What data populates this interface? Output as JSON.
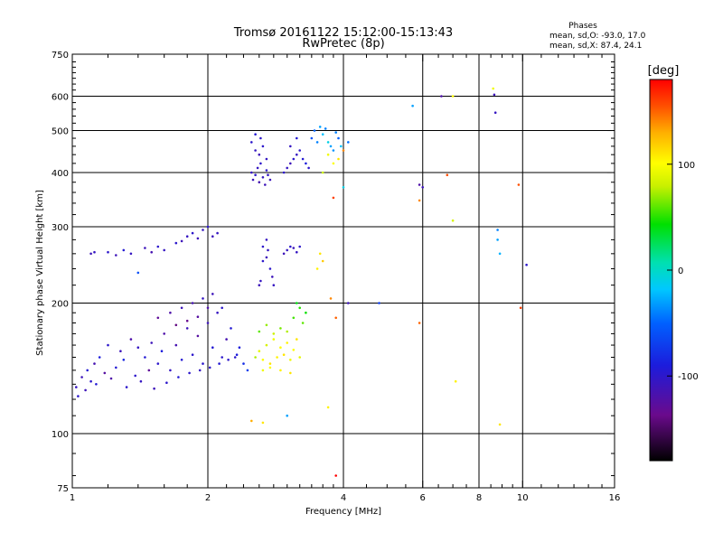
{
  "chart_data": {
    "type": "scatter",
    "title": "Tromsø 20161122 15:12:00-15:13:43",
    "subtitle": "RwPretec (8p)",
    "stats": {
      "heading": "Phases",
      "line1": "mean, sd,O: -93.0, 17.0",
      "line2": "mean, sd,X:  87.4, 24.1"
    },
    "xlabel": "Frequency [MHz]",
    "ylabel": "Stationary phase Virtual Height [km]",
    "x_scale": "log",
    "y_scale": "log",
    "xlim": [
      1,
      16
    ],
    "ylim": [
      75,
      750
    ],
    "x_ticks": [
      1,
      2,
      4,
      6,
      8,
      10,
      16
    ],
    "x_tick_labels": [
      "1",
      "2",
      "4",
      "6",
      "8",
      "10",
      "16"
    ],
    "x_minor_ticks": [
      1.2,
      1.4,
      1.6,
      1.8,
      2.2,
      2.4,
      2.6,
      2.8,
      3,
      3.2,
      3.4,
      3.6,
      3.8,
      4.5,
      5,
      5.5,
      6.5,
      7,
      7.5,
      8.5,
      9,
      9.5,
      11,
      12,
      13,
      14,
      15
    ],
    "x_gridlines": [
      2,
      4,
      6,
      8,
      10
    ],
    "y_ticks": [
      75,
      100,
      200,
      300,
      400,
      500,
      600,
      750
    ],
    "y_tick_labels": [
      "75",
      "100",
      "200",
      "300",
      "400",
      "500",
      "600",
      "750"
    ],
    "y_minor_ticks": [
      80,
      90,
      110,
      120,
      130,
      140,
      150,
      160,
      170,
      180,
      190,
      220,
      240,
      260,
      280,
      320,
      340,
      360,
      380,
      420,
      440,
      460,
      480,
      520,
      540,
      560,
      580,
      620,
      640,
      660,
      680,
      700,
      720
    ],
    "y_gridlines": [
      100,
      200,
      300,
      400,
      500,
      600
    ],
    "grid": true,
    "colorbar": {
      "label": "[deg]",
      "min": -180,
      "max": 180,
      "ticks": [
        100,
        0,
        -100
      ],
      "tick_labels": [
        "100",
        "0",
        "-100"
      ]
    },
    "points": [
      [
        1.02,
        128,
        -105
      ],
      [
        1.05,
        135,
        -110
      ],
      [
        1.08,
        140,
        -95
      ],
      [
        1.1,
        132,
        -100
      ],
      [
        1.12,
        145,
        -115
      ],
      [
        1.15,
        150,
        -90
      ],
      [
        1.18,
        138,
        -125
      ],
      [
        1.2,
        160,
        -100
      ],
      [
        1.25,
        142,
        -95
      ],
      [
        1.28,
        155,
        -110
      ],
      [
        1.3,
        148,
        -85
      ],
      [
        1.35,
        165,
        -120
      ],
      [
        1.38,
        136,
        -100
      ],
      [
        1.4,
        158,
        -105
      ],
      [
        1.45,
        150,
        -95
      ],
      [
        1.48,
        140,
        -130
      ],
      [
        1.5,
        162,
        -110
      ],
      [
        1.55,
        145,
        -100
      ],
      [
        1.58,
        155,
        -90
      ],
      [
        1.6,
        170,
        -120
      ],
      [
        1.65,
        140,
        -105
      ],
      [
        1.7,
        160,
        -115
      ],
      [
        1.75,
        148,
        -95
      ],
      [
        1.8,
        175,
        -110
      ],
      [
        1.85,
        152,
        -100
      ],
      [
        1.9,
        168,
        -125
      ],
      [
        1.95,
        145,
        -100
      ],
      [
        2.0,
        180,
        -110
      ],
      [
        2.05,
        158,
        -95
      ],
      [
        2.1,
        190,
        -105
      ],
      [
        2.15,
        150,
        -100
      ],
      [
        2.2,
        165,
        -115
      ],
      [
        2.25,
        175,
        -95
      ],
      [
        2.3,
        150,
        -100
      ],
      [
        2.35,
        158,
        -90
      ],
      [
        2.4,
        145,
        -80
      ],
      [
        2.45,
        140,
        -70
      ],
      [
        1.03,
        122,
        -100
      ],
      [
        1.07,
        126,
        -110
      ],
      [
        1.13,
        130,
        -95
      ],
      [
        1.22,
        134,
        -120
      ],
      [
        1.32,
        128,
        -100
      ],
      [
        1.42,
        132,
        -105
      ],
      [
        1.52,
        127,
        -110
      ],
      [
        1.62,
        131,
        -100
      ],
      [
        1.72,
        135,
        -95
      ],
      [
        1.82,
        138,
        -100
      ],
      [
        1.92,
        140,
        -105
      ],
      [
        2.02,
        142,
        -100
      ],
      [
        2.12,
        145,
        -95
      ],
      [
        2.22,
        148,
        -100
      ],
      [
        2.32,
        152,
        -90
      ],
      [
        1.55,
        185,
        -130
      ],
      [
        1.65,
        190,
        -120
      ],
      [
        1.75,
        195,
        -110
      ],
      [
        1.85,
        200,
        -115
      ],
      [
        1.95,
        205,
        -105
      ],
      [
        2.05,
        210,
        -110
      ],
      [
        2.15,
        195,
        -100
      ],
      [
        1.7,
        178,
        -140
      ],
      [
        1.8,
        182,
        -135
      ],
      [
        1.9,
        186,
        -125
      ],
      [
        2.0,
        195,
        -120
      ],
      [
        2.55,
        150,
        75
      ],
      [
        2.6,
        155,
        90
      ],
      [
        2.65,
        148,
        100
      ],
      [
        2.7,
        160,
        85
      ],
      [
        2.75,
        145,
        110
      ],
      [
        2.8,
        165,
        95
      ],
      [
        2.85,
        150,
        105
      ],
      [
        2.9,
        158,
        100
      ],
      [
        2.95,
        152,
        110
      ],
      [
        3.0,
        162,
        105
      ],
      [
        3.05,
        148,
        95
      ],
      [
        3.1,
        156,
        100
      ],
      [
        3.15,
        165,
        110
      ],
      [
        3.2,
        150,
        90
      ],
      [
        2.6,
        172,
        60
      ],
      [
        2.7,
        178,
        70
      ],
      [
        2.8,
        170,
        80
      ],
      [
        2.9,
        175,
        65
      ],
      [
        3.0,
        172,
        75
      ],
      [
        3.1,
        185,
        55
      ],
      [
        3.2,
        195,
        50
      ],
      [
        3.25,
        180,
        60
      ],
      [
        3.3,
        190,
        45
      ],
      [
        3.15,
        200,
        40
      ],
      [
        2.65,
        140,
        95
      ],
      [
        2.75,
        142,
        100
      ],
      [
        2.9,
        140,
        105
      ],
      [
        3.05,
        138,
        110
      ],
      [
        1.1,
        260,
        -110
      ],
      [
        1.12,
        262,
        -105
      ],
      [
        1.2,
        262,
        -100
      ],
      [
        1.25,
        258,
        -110
      ],
      [
        1.3,
        265,
        -95
      ],
      [
        1.35,
        260,
        -105
      ],
      [
        1.45,
        268,
        -110
      ],
      [
        1.5,
        262,
        -115
      ],
      [
        1.55,
        270,
        -100
      ],
      [
        1.6,
        265,
        -105
      ],
      [
        1.7,
        275,
        -100
      ],
      [
        1.75,
        278,
        -110
      ],
      [
        1.8,
        285,
        -105
      ],
      [
        1.85,
        290,
        -100
      ],
      [
        1.9,
        282,
        -110
      ],
      [
        1.95,
        295,
        -105
      ],
      [
        2.0,
        300,
        -100
      ],
      [
        2.05,
        285,
        -110
      ],
      [
        2.1,
        290,
        -105
      ],
      [
        1.4,
        235,
        -60
      ],
      [
        2.5,
        400,
        -105
      ],
      [
        2.52,
        385,
        -110
      ],
      [
        2.55,
        395,
        -100
      ],
      [
        2.58,
        410,
        -105
      ],
      [
        2.6,
        380,
        -115
      ],
      [
        2.62,
        420,
        -100
      ],
      [
        2.65,
        390,
        -105
      ],
      [
        2.68,
        375,
        -110
      ],
      [
        2.7,
        405,
        -100
      ],
      [
        2.72,
        395,
        -105
      ],
      [
        2.75,
        385,
        -110
      ],
      [
        2.5,
        470,
        -100
      ],
      [
        2.55,
        450,
        -105
      ],
      [
        2.6,
        440,
        -110
      ],
      [
        2.65,
        460,
        -100
      ],
      [
        2.7,
        430,
        -105
      ],
      [
        2.55,
        490,
        -95
      ],
      [
        2.62,
        480,
        -100
      ],
      [
        2.6,
        220,
        -110
      ],
      [
        2.62,
        225,
        -105
      ],
      [
        2.65,
        250,
        -100
      ],
      [
        2.7,
        255,
        -110
      ],
      [
        2.72,
        265,
        -105
      ],
      [
        2.75,
        240,
        -100
      ],
      [
        2.78,
        230,
        -110
      ],
      [
        2.8,
        220,
        -105
      ],
      [
        2.65,
        270,
        -100
      ],
      [
        2.7,
        280,
        -105
      ],
      [
        2.95,
        260,
        -110
      ],
      [
        3.0,
        265,
        -105
      ],
      [
        3.05,
        270,
        -100
      ],
      [
        3.1,
        268,
        -110
      ],
      [
        3.15,
        262,
        -105
      ],
      [
        3.2,
        270,
        -100
      ],
      [
        2.95,
        400,
        -100
      ],
      [
        3.0,
        410,
        -105
      ],
      [
        3.05,
        420,
        -110
      ],
      [
        3.1,
        430,
        -100
      ],
      [
        3.15,
        440,
        -105
      ],
      [
        3.2,
        450,
        -100
      ],
      [
        3.25,
        430,
        -95
      ],
      [
        3.3,
        420,
        -90
      ],
      [
        3.35,
        410,
        -100
      ],
      [
        3.05,
        460,
        -105
      ],
      [
        3.15,
        480,
        -95
      ],
      [
        3.4,
        480,
        -60
      ],
      [
        3.45,
        500,
        -50
      ],
      [
        3.5,
        470,
        -40
      ],
      [
        3.55,
        510,
        -30
      ],
      [
        3.6,
        490,
        -20
      ],
      [
        3.65,
        505,
        -40
      ],
      [
        3.7,
        470,
        -10
      ],
      [
        3.75,
        460,
        -30
      ],
      [
        3.8,
        450,
        -35
      ],
      [
        3.85,
        495,
        -40
      ],
      [
        3.9,
        480,
        -50
      ],
      [
        3.95,
        460,
        -20
      ],
      [
        3.6,
        400,
        80
      ],
      [
        3.7,
        440,
        95
      ],
      [
        3.8,
        420,
        100
      ],
      [
        3.9,
        430,
        110
      ],
      [
        4.0,
        450,
        140
      ],
      [
        3.5,
        240,
        105
      ],
      [
        3.6,
        250,
        120
      ],
      [
        3.55,
        260,
        110
      ],
      [
        3.75,
        205,
        140
      ],
      [
        3.85,
        185,
        150
      ],
      [
        3.8,
        350,
        160
      ],
      [
        4.0,
        370,
        -10
      ],
      [
        4.1,
        200,
        -110
      ],
      [
        4.1,
        470,
        -45
      ],
      [
        3.7,
        115,
        105
      ],
      [
        3.85,
        80,
        180
      ],
      [
        3.0,
        110,
        -30
      ],
      [
        2.5,
        107,
        130
      ],
      [
        2.65,
        106,
        110
      ],
      [
        4.8,
        200,
        -70
      ],
      [
        5.7,
        570,
        -30
      ],
      [
        5.9,
        375,
        -120
      ],
      [
        6.0,
        370,
        -110
      ],
      [
        5.9,
        345,
        140
      ],
      [
        5.9,
        180,
        150
      ],
      [
        6.6,
        600,
        -120
      ],
      [
        6.8,
        395,
        155
      ],
      [
        7.0,
        600,
        100
      ],
      [
        7.0,
        310,
        85
      ],
      [
        7.1,
        132,
        105
      ],
      [
        8.6,
        625,
        95
      ],
      [
        8.65,
        605,
        -110
      ],
      [
        8.7,
        550,
        -105
      ],
      [
        8.8,
        295,
        -40
      ],
      [
        8.8,
        280,
        -30
      ],
      [
        8.9,
        260,
        -25
      ],
      [
        8.9,
        105,
        110
      ],
      [
        9.8,
        375,
        155
      ],
      [
        9.9,
        195,
        160
      ],
      [
        10.2,
        245,
        -100
      ]
    ]
  }
}
